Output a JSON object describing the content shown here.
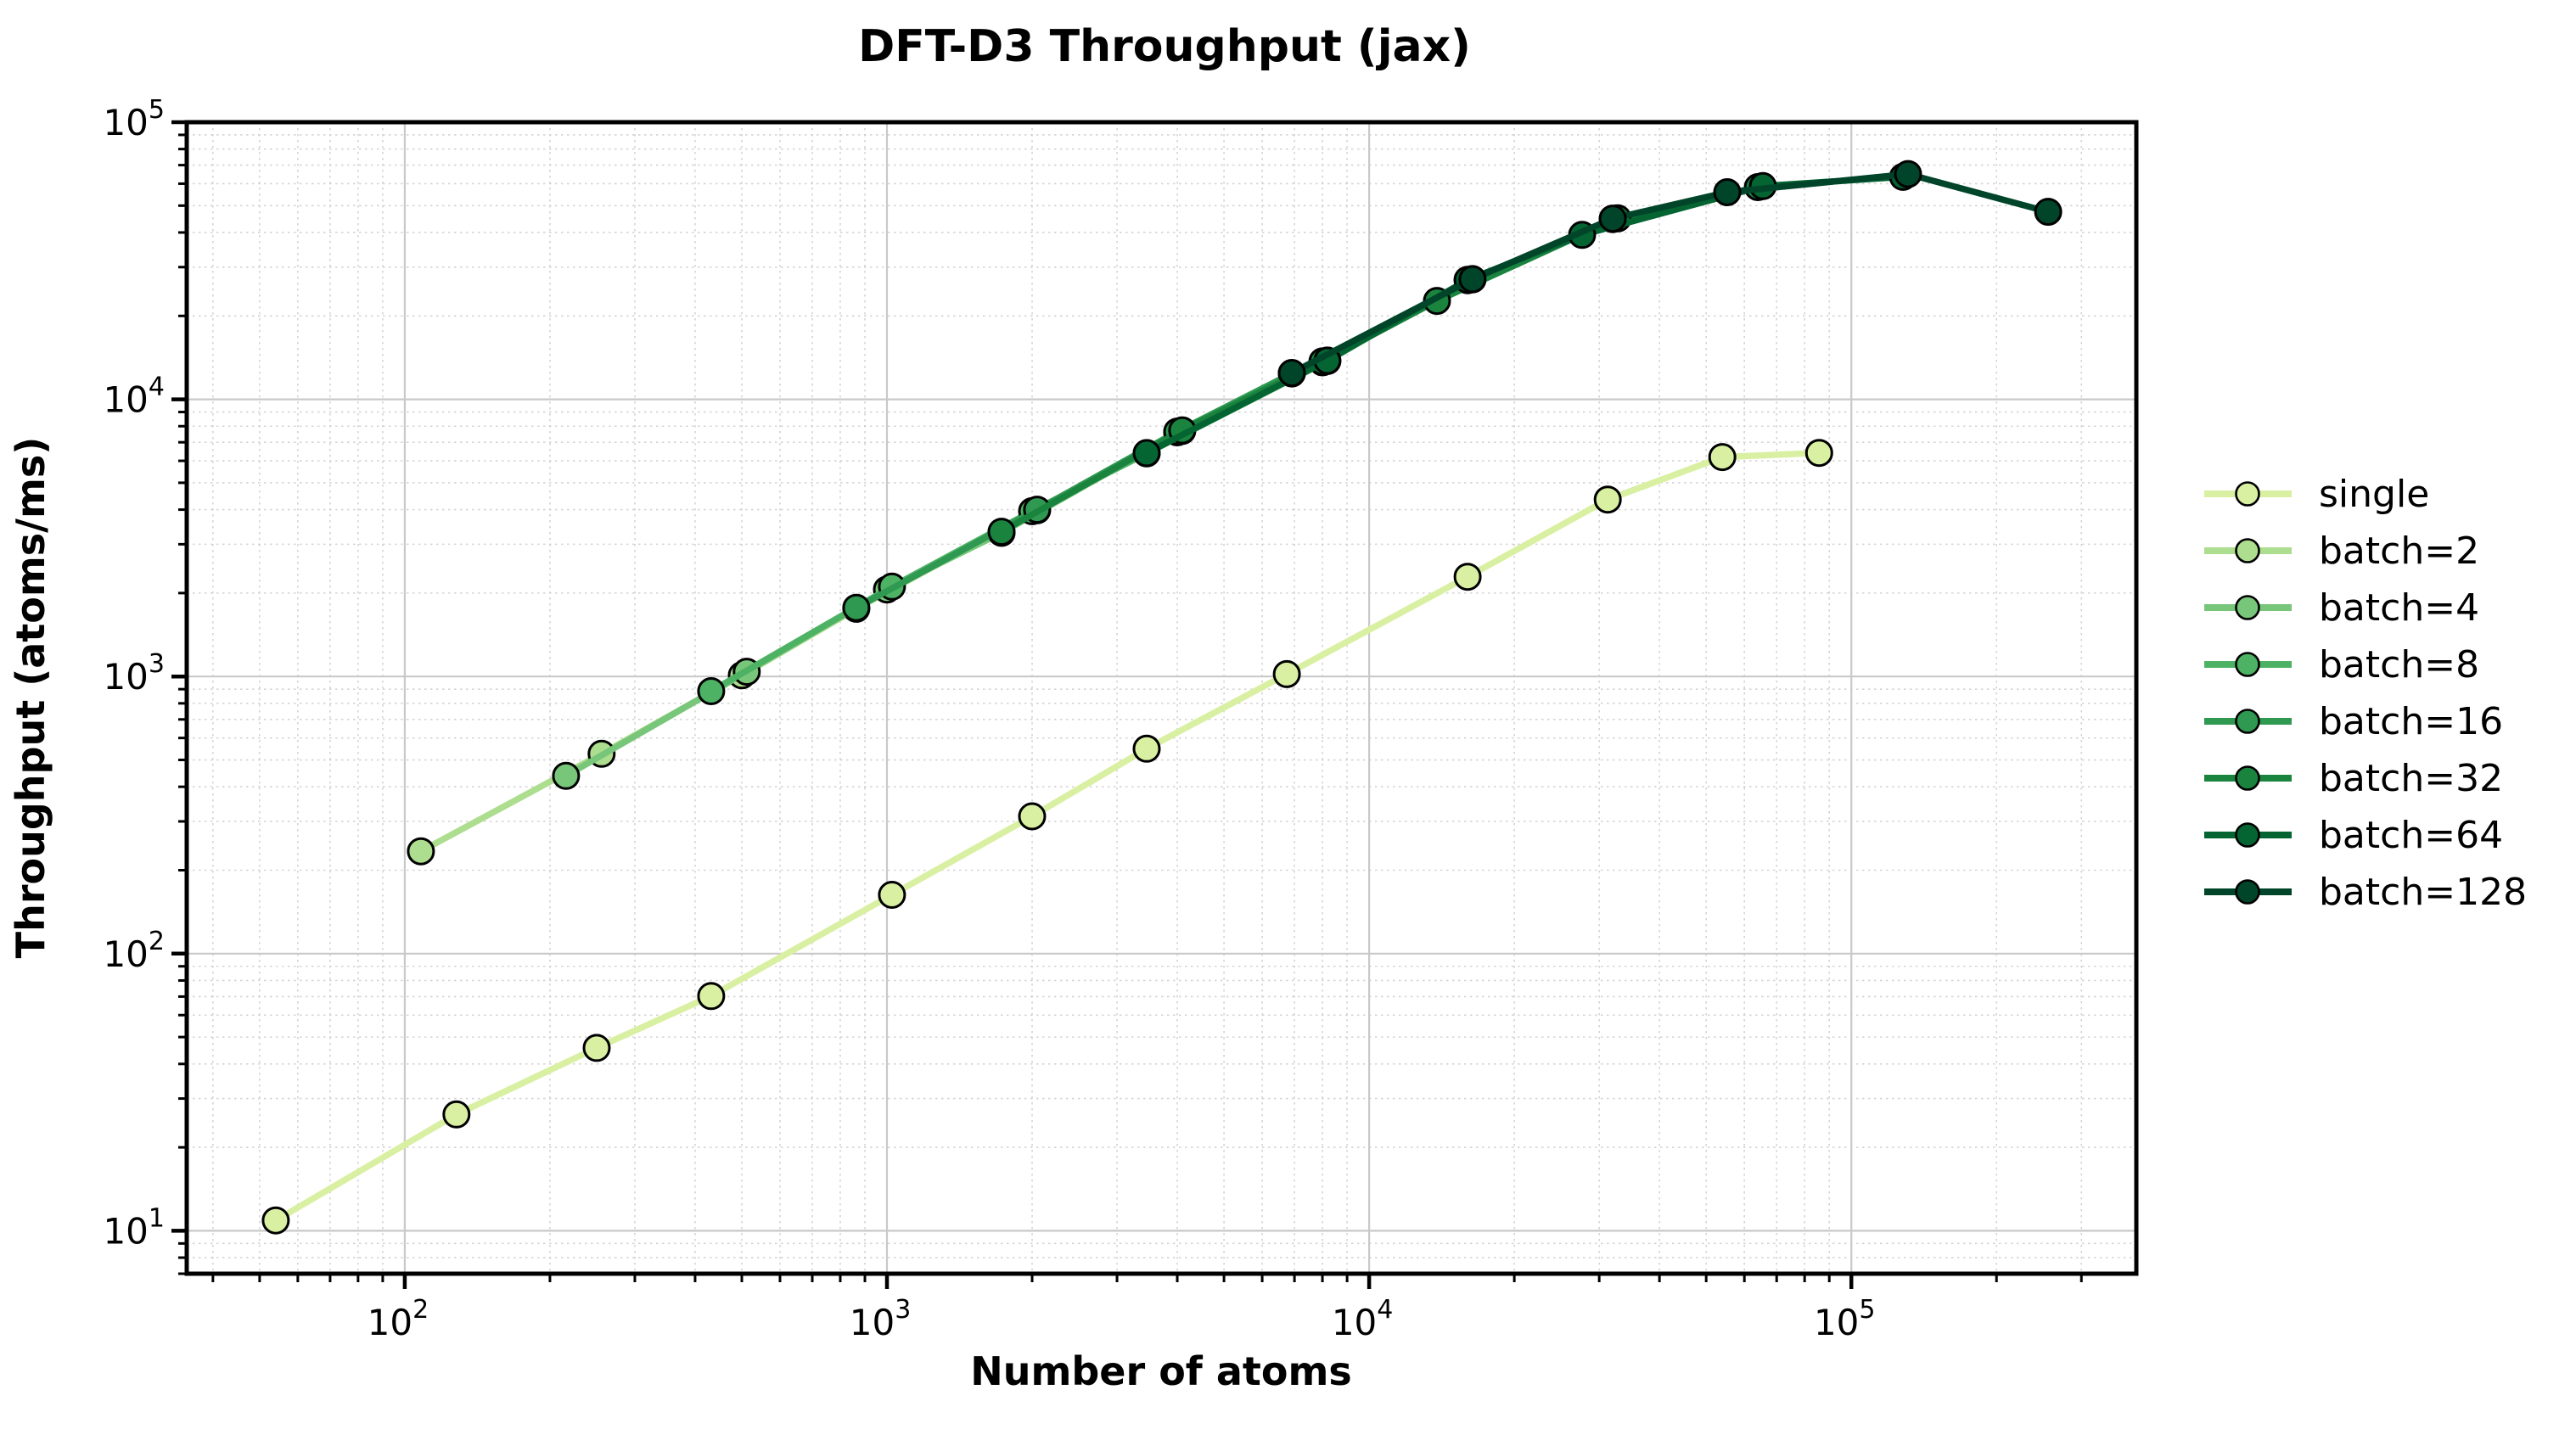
{
  "title": "DFT-D3 Throughput (jax)",
  "chart_data": {
    "type": "line",
    "title": "DFT-D3 Throughput (jax)",
    "xlabel": "Number of atoms",
    "ylabel": "Throughput (atoms/ms)",
    "x_scale": "log",
    "y_scale": "log",
    "xlim": [
      35.3,
      390000
    ],
    "ylim": [
      7.0,
      100000
    ],
    "x_major_ticks": [
      100,
      1000,
      10000,
      100000
    ],
    "y_major_ticks": [
      10,
      100,
      1000,
      10000,
      100000
    ],
    "tick_format": "power10",
    "grid": {
      "major": true,
      "minor": true
    },
    "legend_position": "right of plot, no frame",
    "colors": {
      "grid_major": "#c9c9c9",
      "grid_minor": "#cdcdcd",
      "spine": "#000000",
      "marker_edge": "#000000",
      "text": "#000000"
    },
    "series": [
      {
        "name": "single",
        "color": "#d9f0a3",
        "points": [
          [
            54,
            10.9
          ],
          [
            128,
            26.3
          ],
          [
            250,
            45.7
          ],
          [
            432,
            70.3
          ],
          [
            1024,
            163
          ],
          [
            2000,
            313
          ],
          [
            3456,
            549
          ],
          [
            6750,
            1020
          ],
          [
            16000,
            2290
          ],
          [
            31250,
            4350
          ],
          [
            54000,
            6190
          ],
          [
            85750,
            6410
          ]
        ]
      },
      {
        "name": "batch=2",
        "color": "#addd8e",
        "points": [
          [
            108,
            234
          ],
          [
            256,
            526
          ],
          [
            500,
            1010
          ],
          [
            864,
            1755
          ],
          [
            2048,
            3980
          ],
          [
            4000,
            7600
          ]
        ]
      },
      {
        "name": "batch=4",
        "color": "#78c679",
        "points": [
          [
            216,
            438
          ],
          [
            512,
            1040
          ],
          [
            1000,
            2060
          ],
          [
            1728,
            3300
          ],
          [
            4096,
            7700
          ],
          [
            8000,
            13600
          ]
        ]
      },
      {
        "name": "batch=8",
        "color": "#4eb264",
        "points": [
          [
            432,
            885
          ],
          [
            1024,
            2110
          ],
          [
            2000,
            3950
          ],
          [
            3456,
            6380
          ],
          [
            8192,
            13750
          ],
          [
            16000,
            26900
          ]
        ]
      },
      {
        "name": "batch=16",
        "color": "#2f9851",
        "points": [
          [
            864,
            1770
          ],
          [
            2048,
            4000
          ],
          [
            4000,
            7650
          ],
          [
            6912,
            12400
          ],
          [
            16384,
            27100
          ],
          [
            32000,
            44700
          ]
        ]
      },
      {
        "name": "batch=32",
        "color": "#1a843f",
        "points": [
          [
            1728,
            3330
          ],
          [
            4096,
            7730
          ],
          [
            8000,
            13700
          ],
          [
            13824,
            22650
          ],
          [
            32768,
            45000
          ],
          [
            64000,
            58300
          ]
        ]
      },
      {
        "name": "batch=64",
        "color": "#046432",
        "points": [
          [
            3456,
            6400
          ],
          [
            8192,
            13800
          ],
          [
            16000,
            27000
          ],
          [
            27648,
            39200
          ],
          [
            65536,
            58800
          ],
          [
            128000,
            63500
          ]
        ]
      },
      {
        "name": "batch=128",
        "color": "#004529",
        "points": [
          [
            6912,
            12450
          ],
          [
            16384,
            27150
          ],
          [
            32000,
            44900
          ],
          [
            55296,
            55900
          ],
          [
            131072,
            65000
          ],
          [
            256000,
            47500
          ]
        ]
      }
    ]
  }
}
